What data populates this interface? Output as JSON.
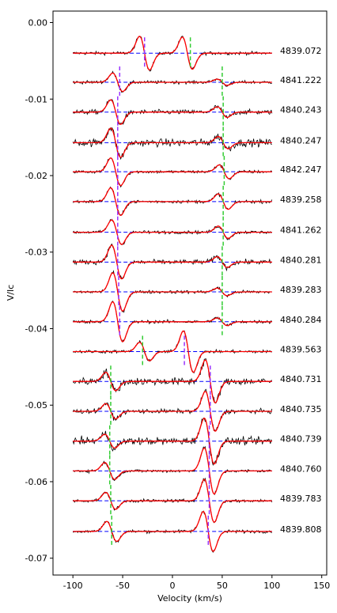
{
  "chart_data": {
    "type": "line",
    "title": "",
    "xlabel": "Velocity (km/s)",
    "ylabel": "V/Ic",
    "xlim": [
      -120,
      155
    ],
    "ylim": [
      -0.0722,
      0.0015
    ],
    "xticks": [
      -100,
      -50,
      0,
      50,
      100,
      150
    ],
    "yticks": [
      0.0,
      -0.01,
      -0.02,
      -0.03,
      -0.04,
      -0.05,
      -0.06,
      -0.07
    ],
    "ytick_labels": [
      "0.00",
      "-0.01",
      "-0.02",
      "-0.03",
      "-0.04",
      "-0.05",
      "-0.06",
      "-0.07"
    ],
    "x_range": [
      -100,
      100
    ],
    "colors": {
      "observed": "#000000",
      "model": "#ff0000",
      "baseline": "#0000ff",
      "primary_marker": "#9933ff",
      "secondary_marker": "#33cc33"
    },
    "series": [
      {
        "label": "4839.072",
        "offset": -0.004,
        "c1": -28,
        "a1": 0.0022,
        "c2": 15,
        "a2": 0.0021,
        "noise": 0.00015,
        "m_purple": -28,
        "m_green": 18
      },
      {
        "label": "4841.222",
        "offset": -0.0078,
        "c1": -55,
        "a1": 0.0012,
        "c2": 50,
        "a2": 0.0004,
        "noise": 0.00015,
        "m_purple": -53,
        "m_green": 50
      },
      {
        "label": "4840.243",
        "offset": -0.0117,
        "c1": -57,
        "a1": 0.0016,
        "c2": 50,
        "a2": 0.0007,
        "noise": 0.00022,
        "m_purple": -55,
        "m_green": 51
      },
      {
        "label": "4840.247",
        "offset": -0.0157,
        "c1": -57,
        "a1": 0.0019,
        "c2": 51,
        "a2": 0.0008,
        "noise": 0.00035,
        "m_purple": -55,
        "m_green": 51
      },
      {
        "label": "4842.247",
        "offset": -0.0195,
        "c1": -57,
        "a1": 0.0018,
        "c2": 52,
        "a2": 0.0009,
        "noise": 0.00015,
        "m_purple": -55,
        "m_green": 52
      },
      {
        "label": "4839.258",
        "offset": -0.0234,
        "c1": -57,
        "a1": 0.0018,
        "c2": 51,
        "a2": 0.001,
        "noise": 0.00015,
        "m_purple": -55,
        "m_green": 51
      },
      {
        "label": "4841.262",
        "offset": -0.0274,
        "c1": -56,
        "a1": 0.0016,
        "c2": 51,
        "a2": 0.0008,
        "noise": 0.00015,
        "m_purple": -55,
        "m_green": 51
      },
      {
        "label": "4840.281",
        "offset": -0.0313,
        "c1": -56,
        "a1": 0.0022,
        "c2": 50,
        "a2": 0.0007,
        "noise": 0.00022,
        "m_purple": -55,
        "m_green": 50
      },
      {
        "label": "4839.283",
        "offset": -0.0352,
        "c1": -55,
        "a1": 0.0025,
        "c2": 50,
        "a2": 0.0005,
        "noise": 0.00015,
        "m_purple": -54,
        "m_green": 50
      },
      {
        "label": "4840.284",
        "offset": -0.0391,
        "c1": -55,
        "a1": 0.0026,
        "c2": 50,
        "a2": 0.0005,
        "noise": 0.00015,
        "m_purple": -53,
        "m_green": 50
      },
      {
        "label": "4839.563",
        "offset": -0.043,
        "c1": 16,
        "a1": 0.0027,
        "c2": -28,
        "a2": 0.0012,
        "noise": 0.00015,
        "m_purple": 12,
        "m_green": -30
      },
      {
        "label": "4840.731",
        "offset": -0.0469,
        "c1": 38,
        "a1": 0.0028,
        "c2": -62,
        "a2": 0.0012,
        "noise": 0.00035,
        "m_purple": 38,
        "m_green": -62
      },
      {
        "label": "4840.735",
        "offset": -0.0508,
        "c1": 38,
        "a1": 0.0026,
        "c2": -62,
        "a2": 0.001,
        "noise": 0.0002,
        "m_purple": 38,
        "m_green": -62
      },
      {
        "label": "4840.739",
        "offset": -0.0547,
        "c1": 37,
        "a1": 0.003,
        "c2": -63,
        "a2": 0.0009,
        "noise": 0.00035,
        "m_purple": 37,
        "m_green": -63
      },
      {
        "label": "4840.760",
        "offset": -0.0586,
        "c1": 37,
        "a1": 0.003,
        "c2": -63,
        "a2": 0.0011,
        "noise": 0.00015,
        "m_purple": 37,
        "m_green": -63
      },
      {
        "label": "4839.783",
        "offset": -0.0625,
        "c1": 37,
        "a1": 0.0028,
        "c2": -62,
        "a2": 0.0011,
        "noise": 0.00015,
        "m_purple": 37,
        "m_green": -62
      },
      {
        "label": "4839.808",
        "offset": -0.0665,
        "c1": 36,
        "a1": 0.0026,
        "c2": -61,
        "a2": 0.0013,
        "noise": 0.00015,
        "m_purple": 36,
        "m_green": -61
      }
    ]
  }
}
